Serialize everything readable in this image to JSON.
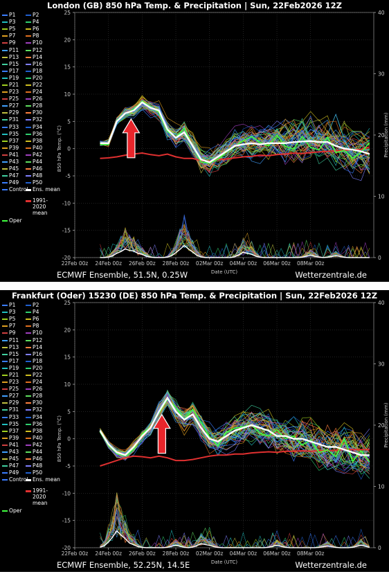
{
  "legend": {
    "members": [
      "P1",
      "P2",
      "P3",
      "P4",
      "P5",
      "P6",
      "P7",
      "P8",
      "P9",
      "P10",
      "P11",
      "P12",
      "P13",
      "P14",
      "P15",
      "P16",
      "P17",
      "P18",
      "P19",
      "P20",
      "P21",
      "P22",
      "P23",
      "P24",
      "P25",
      "P26",
      "P27",
      "P28",
      "P29",
      "P30",
      "P31",
      "P32",
      "P33",
      "P34",
      "P35",
      "P36",
      "P37",
      "P38",
      "P39",
      "P40",
      "P41",
      "P42",
      "P43",
      "P44",
      "P45",
      "P46",
      "P47",
      "P48",
      "P49",
      "P50"
    ],
    "member_colors": [
      "#3a7dff",
      "#2060d0",
      "#20c0c0",
      "#30d070",
      "#a0d020",
      "#d0c020",
      "#e0a020",
      "#e07020",
      "#d04040",
      "#a040c0",
      "#40a0ff",
      "#60e060",
      "#c0c040",
      "#ff8040",
      "#40d0a0",
      "#8080ff"
    ],
    "control": "Control",
    "ens_mean": "Ens. mean",
    "climate": "1991-2020 mean",
    "oper": "Oper",
    "control_color": "#3a7dff",
    "ens_mean_color": "#ffffff",
    "climate_color": "#e03030",
    "oper_color": "#40ff40"
  },
  "chart_data": [
    {
      "type": "line",
      "title": "London  (GB)  850 hPa Temp. & Precipitation | Sun, 22Feb2026 12Z",
      "footer_left": "ECMWF Ensemble, 51.5N, 0.25W",
      "footer_right": "Wetterzentrale.de",
      "xlabel": "Date (UTC)",
      "ylabel": "850 hPa Temp. (°C)",
      "ylabel_right": "Precipitation (mm)",
      "x_ticks": [
        "22Feb 00z",
        "24Feb 00z",
        "26Feb 00z",
        "28Feb 00z",
        "02Mar 00z",
        "04Mar 00z",
        "06Mar 00z",
        "08Mar 00z"
      ],
      "xlim_days": [
        0,
        17.75
      ],
      "ylim": [
        -20,
        25
      ],
      "y_ticks": [
        -20,
        -15,
        -10,
        -5,
        0,
        5,
        10,
        15,
        20,
        25
      ],
      "ylim_right": [
        0,
        40
      ],
      "y_ticks_right": [
        0,
        10,
        20,
        30,
        40
      ],
      "series": [
        {
          "name": "Ens. mean",
          "x": [
            1.5,
            2,
            2.5,
            3,
            3.5,
            4,
            4.5,
            5,
            5.5,
            6,
            6.5,
            7,
            7.5,
            8,
            8.5,
            9,
            9.5,
            10,
            10.5,
            11,
            11.5,
            12,
            12.5,
            13,
            13.5,
            14,
            14.5,
            15,
            15.5,
            16,
            16.5,
            17,
            17.5
          ],
          "values": [
            1,
            1,
            5,
            6.5,
            7,
            8.5,
            7.5,
            7,
            3.5,
            2,
            3,
            0.5,
            -2,
            -2.5,
            -1.5,
            -0.5,
            0.5,
            0.8,
            1,
            0.8,
            1,
            1,
            1,
            1.2,
            1.3,
            1.4,
            1.2,
            1.2,
            0.5,
            0,
            -0.2,
            -0.5,
            -1
          ]
        },
        {
          "name": "1991-2020 mean",
          "x": [
            1.5,
            2,
            2.5,
            3,
            3.5,
            4,
            4.5,
            5,
            5.5,
            6,
            6.5,
            7,
            7.5,
            8,
            8.5,
            9,
            9.5,
            10,
            10.5,
            11,
            11.5,
            12,
            12.5,
            13,
            13.5,
            14,
            14.5,
            15,
            15.5,
            16,
            16.5,
            17,
            17.5
          ],
          "values": [
            -1.8,
            -1.7,
            -1.5,
            -1.2,
            -1,
            -0.8,
            -1.1,
            -1.3,
            -1,
            -1.5,
            -1.8,
            -1.8,
            -2.2,
            -2.3,
            -2,
            -1.9,
            -1.7,
            -1.5,
            -1.4,
            -1.2,
            -1.3,
            -1.1,
            -1,
            -0.8,
            -0.9,
            -0.7,
            -0.6,
            -0.5,
            -0.4,
            -0.3,
            -0.2,
            -0.1,
            0.3
          ]
        }
      ],
      "precip_mean": {
        "x": [
          2.5,
          3,
          3.5,
          4,
          6,
          6.5,
          7,
          10,
          10.5,
          14,
          15.5
        ],
        "values": [
          0.5,
          1.2,
          0.8,
          0.4,
          0.5,
          1.8,
          0.6,
          0.8,
          0.4,
          0.4,
          0.3
        ]
      },
      "annotation": "red upward arrow below temperature peak near 25Feb"
    },
    {
      "type": "line",
      "title": "Frankfurt (Oder) 15230 (DE)  850 hPa Temp. & Precipitation | Sun, 22Feb2026 12Z",
      "footer_left": "ECMWF Ensemble, 52.25N, 14.5E",
      "footer_right": "Wetterzentrale.de",
      "xlabel": "Date (UTC)",
      "ylabel": "850 hPa Temp. (°C)",
      "ylabel_right": "Precipitation (mm)",
      "x_ticks": [
        "22Feb 00z",
        "24Feb 00z",
        "26Feb 00z",
        "28Feb 00z",
        "02Mar 00z",
        "04Mar 00z",
        "06Mar 00z",
        "08Mar 00z"
      ],
      "xlim_days": [
        0,
        17.75
      ],
      "ylim": [
        -20,
        25
      ],
      "y_ticks": [
        -20,
        -15,
        -10,
        -5,
        0,
        5,
        10,
        15,
        20,
        25
      ],
      "ylim_right": [
        0,
        40
      ],
      "y_ticks_right": [
        0,
        10,
        20,
        30,
        40
      ],
      "series": [
        {
          "name": "Ens. mean",
          "x": [
            1.5,
            2,
            2.5,
            3,
            3.5,
            4,
            4.5,
            5,
            5.5,
            6,
            6.5,
            7,
            7.5,
            8,
            8.5,
            9,
            9.5,
            10,
            10.5,
            11,
            11.5,
            12,
            12.5,
            13,
            13.5,
            14,
            14.5,
            15,
            15.5,
            16,
            16.5,
            17,
            17.5
          ],
          "values": [
            1.5,
            -1,
            -2.5,
            -3,
            -1.5,
            0.5,
            2,
            5,
            7.5,
            5,
            3.5,
            4.5,
            2,
            0,
            -0.5,
            0.5,
            1.5,
            2,
            2.5,
            2,
            1.5,
            0.5,
            0.5,
            0,
            0,
            -0.5,
            -1,
            -1.5,
            -1.5,
            -2,
            -2.5,
            -3,
            -3
          ]
        },
        {
          "name": "1991-2020 mean",
          "x": [
            1.5,
            2,
            2.5,
            3,
            3.5,
            4,
            4.5,
            5,
            5.5,
            6,
            6.5,
            7,
            7.5,
            8,
            8.5,
            9,
            9.5,
            10,
            10.5,
            11,
            11.5,
            12,
            12.5,
            13,
            13.5,
            14,
            14.5,
            15,
            15.5,
            16,
            16.5,
            17,
            17.5
          ],
          "values": [
            -5,
            -4.5,
            -4,
            -3.5,
            -3.2,
            -3.3,
            -3.5,
            -3.2,
            -3.5,
            -4,
            -4,
            -3.8,
            -3.5,
            -3.2,
            -3,
            -3,
            -2.8,
            -2.8,
            -2.6,
            -2.5,
            -2.4,
            -2.5,
            -2.3,
            -2.3,
            -2.2,
            -2.3,
            -2.2,
            -2.2,
            -2.1,
            -2,
            -2,
            -2,
            -2
          ]
        }
      ],
      "precip_mean": {
        "x": [
          2,
          2.5,
          3,
          3.5,
          6,
          7.5,
          8,
          12,
          15,
          17
        ],
        "values": [
          0.5,
          2.5,
          1,
          0.3,
          0.4,
          0.6,
          0.3,
          0.4,
          0.3,
          0.4
        ]
      },
      "annotation": "red upward arrow below temperature peak near 25Feb"
    }
  ]
}
